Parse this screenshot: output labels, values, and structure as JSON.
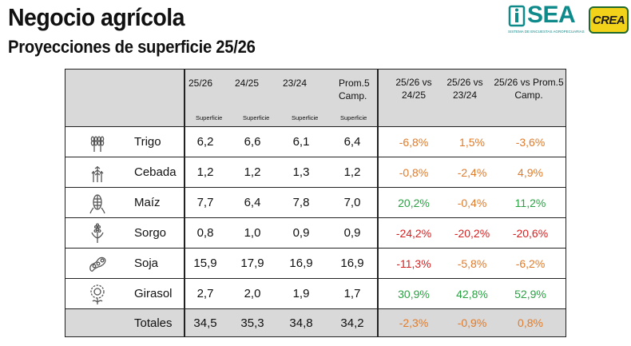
{
  "header": {
    "title": "Negocio agrícola",
    "subtitle": "Proyecciones de superficie 25/26"
  },
  "logos": {
    "sea_text": "SEA",
    "sea_tagline": "SISTEMA DE ENCUESTAS AGROPECUARIAS",
    "crea_text": "CREA",
    "colors": {
      "sea": "#0f8a8a",
      "crea_bg": "#f3d21a",
      "crea_border": "#1f6a2a"
    }
  },
  "table": {
    "columns": {
      "c1": "25/26",
      "c2": "24/25",
      "c3": "23/24",
      "c4": "Prom.5 Camp.",
      "sub": "Superficie",
      "p1": "25/26 vs 24/25",
      "p2": "25/26 vs 23/24",
      "p3": "25/26 vs Prom.5 Camp."
    },
    "rows": [
      {
        "name": "Trigo",
        "icon": "wheat-icon",
        "c1": "6,2",
        "c2": "6,6",
        "c3": "6,1",
        "c4": "6,4",
        "p1": "-6,8%",
        "p2": "1,5%",
        "p3": "-3,6%"
      },
      {
        "name": "Cebada",
        "icon": "barley-icon",
        "c1": "1,2",
        "c2": "1,2",
        "c3": "1,3",
        "c4": "1,2",
        "p1": "-0,8%",
        "p2": "-2,4%",
        "p3": "4,9%"
      },
      {
        "name": "Maíz",
        "icon": "corn-icon",
        "c1": "7,7",
        "c2": "6,4",
        "c3": "7,8",
        "c4": "7,0",
        "p1": "20,2%",
        "p2": "-0,4%",
        "p3": "11,2%"
      },
      {
        "name": "Sorgo",
        "icon": "sorghum-icon",
        "c1": "0,8",
        "c2": "1,0",
        "c3": "0,9",
        "c4": "0,9",
        "p1": "-24,2%",
        "p2": "-20,2%",
        "p3": "-20,6%"
      },
      {
        "name": "Soja",
        "icon": "soy-icon",
        "c1": "15,9",
        "c2": "17,9",
        "c3": "16,9",
        "c4": "16,9",
        "p1": "-11,3%",
        "p2": "-5,8%",
        "p3": "-6,2%"
      },
      {
        "name": "Girasol",
        "icon": "sunflower-icon",
        "c1": "2,7",
        "c2": "2,0",
        "c3": "1,9",
        "c4": "1,7",
        "p1": "30,9%",
        "p2": "42,8%",
        "p3": "52,9%"
      }
    ],
    "totals": {
      "name": "Totales",
      "c1": "34,5",
      "c2": "35,3",
      "c3": "34,8",
      "c4": "34,2",
      "p1": "-2,3%",
      "p2": "-0,9%",
      "p3": "0,8%"
    },
    "colors": {
      "negative": "#e07b2b",
      "positive": "#2aa243",
      "strong_negative": "#d92020",
      "header_bg": "#d9d9d9"
    }
  }
}
